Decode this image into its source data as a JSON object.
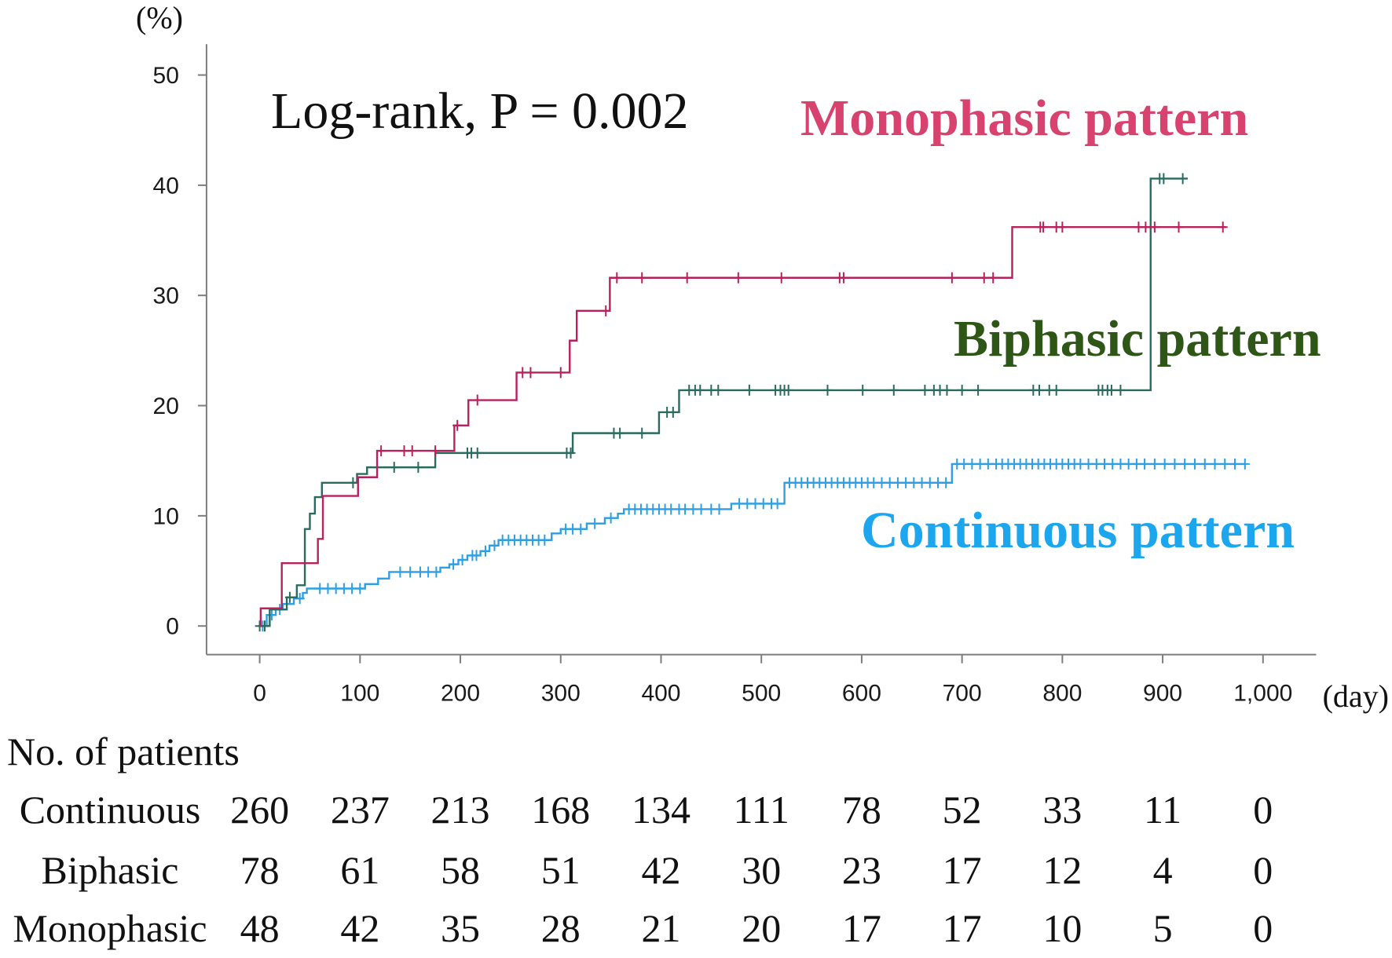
{
  "chart_data": {
    "type": "line",
    "title": "",
    "ylabel": "(%)",
    "xlabel": "(day)",
    "xlim": [
      -53,
      1053
    ],
    "ylim": [
      -2.6,
      52.8
    ],
    "grid": false,
    "yticks": [
      0,
      10,
      20,
      30,
      40,
      50
    ],
    "ytick_labels": [
      "0",
      "10",
      "20",
      "30",
      "40",
      "50"
    ],
    "xticks": [
      0,
      100,
      200,
      300,
      400,
      500,
      600,
      700,
      800,
      900,
      1000
    ],
    "xtick_labels": [
      "0",
      "100",
      "200",
      "300",
      "400",
      "500",
      "600",
      "700",
      "800",
      "900",
      "1,000"
    ],
    "annotation": "Log-rank, P = 0.002",
    "series": [
      {
        "name": "Continuous pattern",
        "line_color": "#2d9fe3",
        "label_color": "#1ba6ee",
        "end_day": 982,
        "steps": [
          [
            0,
            0
          ],
          [
            7,
            1.0
          ],
          [
            16,
            1.5
          ],
          [
            23,
            2.0
          ],
          [
            34,
            2.5
          ],
          [
            43,
            3.0
          ],
          [
            47,
            3.4
          ],
          [
            105,
            3.8
          ],
          [
            118,
            4.3
          ],
          [
            129,
            4.9
          ],
          [
            180,
            5.3
          ],
          [
            189,
            5.6
          ],
          [
            198,
            6.0
          ],
          [
            207,
            6.4
          ],
          [
            220,
            6.8
          ],
          [
            229,
            7.3
          ],
          [
            238,
            7.8
          ],
          [
            291,
            8.4
          ],
          [
            300,
            8.8
          ],
          [
            326,
            9.3
          ],
          [
            344,
            9.8
          ],
          [
            357,
            10.2
          ],
          [
            363,
            10.6
          ],
          [
            470,
            11.1
          ],
          [
            523,
            13.0
          ],
          [
            690,
            14.7
          ]
        ],
        "censored": [
          3,
          12,
          20,
          40,
          60,
          68,
          76,
          84,
          92,
          100,
          140,
          150,
          160,
          168,
          176,
          193,
          202,
          212,
          216,
          225,
          234,
          242,
          248,
          254,
          260,
          266,
          272,
          278,
          284,
          305,
          312,
          320,
          334,
          350,
          368,
          374,
          380,
          386,
          392,
          398,
          404,
          410,
          418,
          424,
          432,
          440,
          450,
          458,
          478,
          486,
          494,
          502,
          510,
          516,
          528,
          534,
          540,
          546,
          552,
          558,
          564,
          570,
          576,
          582,
          588,
          594,
          600,
          606,
          612,
          620,
          628,
          636,
          644,
          652,
          660,
          668,
          676,
          684,
          695,
          702,
          710,
          718,
          726,
          734,
          740,
          746,
          752,
          758,
          764,
          770,
          776,
          782,
          788,
          794,
          800,
          806,
          812,
          818,
          826,
          834,
          842,
          850,
          858,
          866,
          874,
          882,
          892,
          902,
          912,
          922,
          932,
          942,
          952,
          962,
          972,
          982
        ]
      },
      {
        "name": "Biphasic pattern",
        "line_color": "#2a6b5f",
        "label_color": "#2e5617",
        "end_day": 925,
        "steps": [
          [
            0,
            0
          ],
          [
            10,
            1.5
          ],
          [
            27,
            2.6
          ],
          [
            37,
            3.7
          ],
          [
            45,
            8.8
          ],
          [
            50,
            10.2
          ],
          [
            55,
            11.7
          ],
          [
            62,
            13.0
          ],
          [
            97,
            13.8
          ],
          [
            107,
            14.4
          ],
          [
            175,
            15.7
          ],
          [
            312,
            17.5
          ],
          [
            398,
            19.4
          ],
          [
            418,
            21.4
          ],
          [
            888,
            40.6
          ]
        ],
        "censored": [
          0,
          5,
          30,
          93,
          134,
          158,
          207,
          211,
          217,
          306,
          310,
          353,
          359,
          381,
          406,
          412,
          428,
          434,
          439,
          450,
          457,
          488,
          514,
          519,
          523,
          527,
          566,
          601,
          632,
          663,
          672,
          678,
          685,
          700,
          716,
          771,
          777,
          787,
          794,
          836,
          840,
          845,
          849,
          858,
          897,
          901,
          920
        ]
      },
      {
        "name": "Monophasic pattern",
        "line_color": "#b8215c",
        "label_color": "#d8426e",
        "end_day": 963,
        "steps": [
          [
            0,
            0
          ],
          [
            1,
            1.6
          ],
          [
            22,
            5.7
          ],
          [
            58,
            7.9
          ],
          [
            63,
            11.8
          ],
          [
            98,
            13.5
          ],
          [
            117,
            15.9
          ],
          [
            194,
            18.2
          ],
          [
            208,
            20.5
          ],
          [
            256,
            23.0
          ],
          [
            309,
            25.9
          ],
          [
            316,
            28.6
          ],
          [
            349,
            31.6
          ],
          [
            750,
            36.2
          ]
        ],
        "censored": [
          121,
          144,
          152,
          175,
          197,
          217,
          262,
          270,
          300,
          345,
          356,
          381,
          426,
          477,
          520,
          578,
          582,
          690,
          722,
          731,
          778,
          781,
          794,
          800,
          876,
          883,
          892,
          916,
          960
        ]
      }
    ],
    "risk_table": {
      "title": "No. of patients",
      "rows": [
        {
          "label": "Continuous",
          "values": [
            260,
            237,
            213,
            168,
            134,
            111,
            78,
            52,
            33,
            11,
            0
          ]
        },
        {
          "label": "Biphasic",
          "values": [
            78,
            61,
            58,
            51,
            42,
            30,
            23,
            17,
            12,
            4,
            0
          ]
        },
        {
          "label": "Monophasic",
          "values": [
            48,
            42,
            35,
            28,
            21,
            20,
            17,
            17,
            10,
            5,
            0
          ]
        }
      ]
    }
  }
}
